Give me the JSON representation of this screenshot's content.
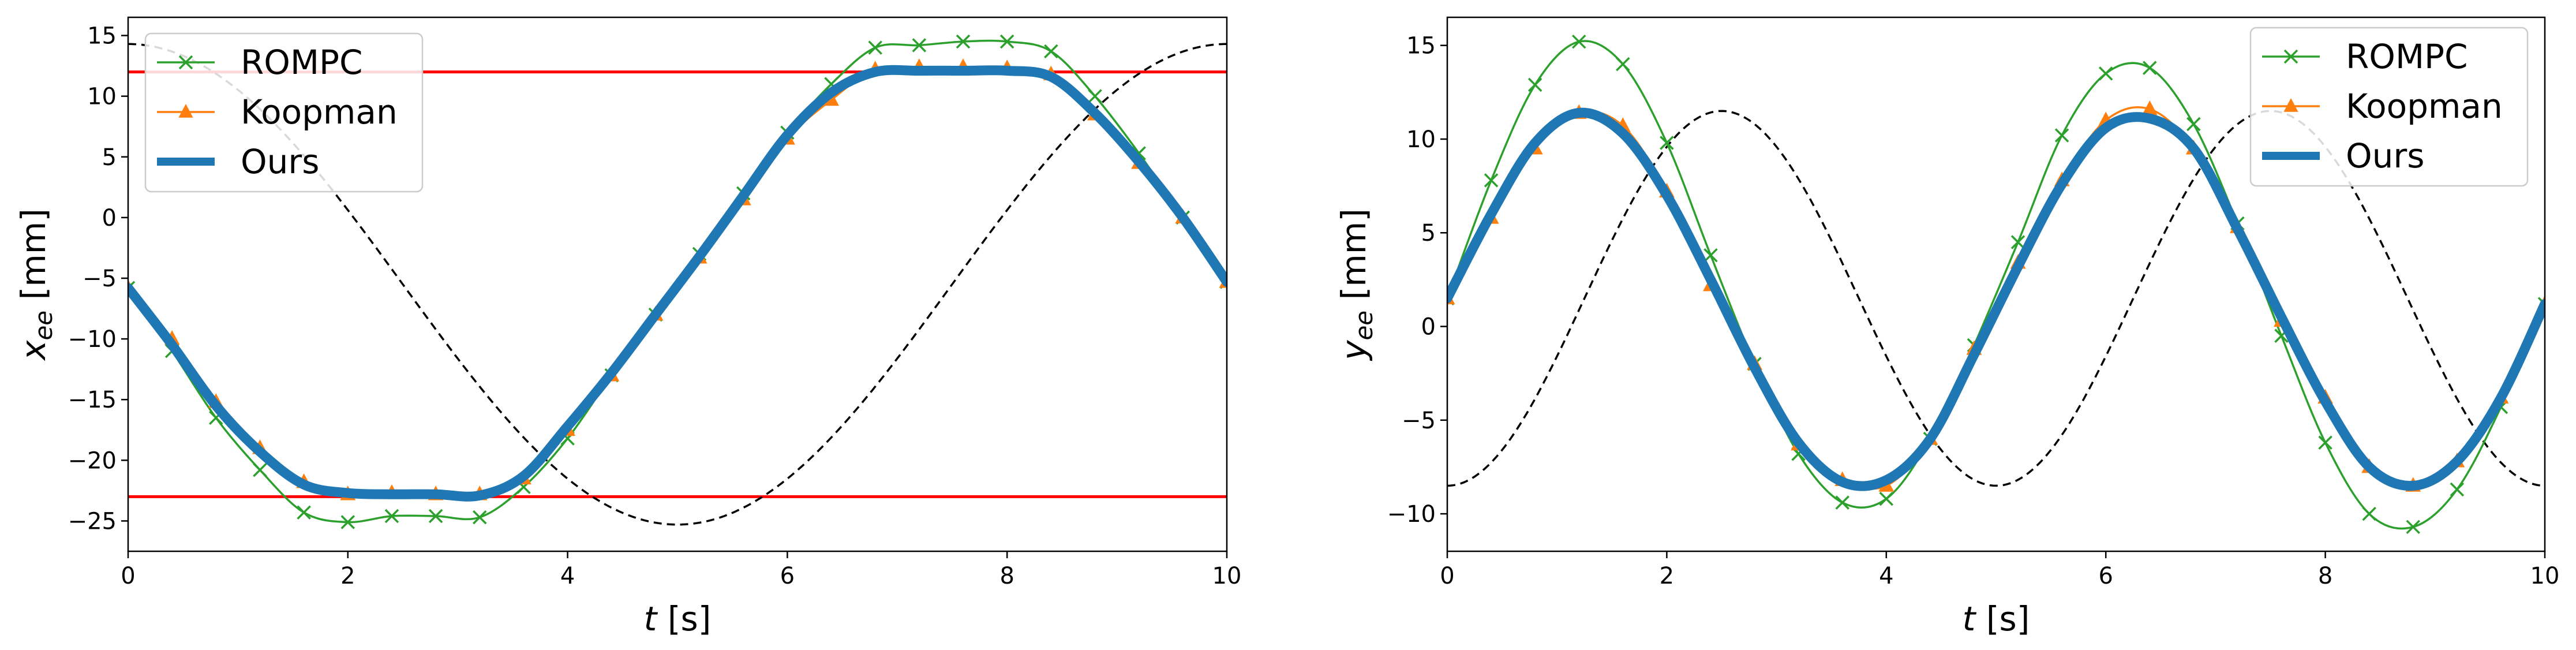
{
  "chart_data": [
    {
      "type": "line",
      "xlabel": "t [s]",
      "ylabel": "x_ee [mm]",
      "xlim": [
        0,
        10
      ],
      "ylim": [
        -27.5,
        16.5
      ],
      "xticks": [
        0,
        2,
        4,
        6,
        8,
        10
      ],
      "yticks": [
        -25,
        -20,
        -15,
        -10,
        -5,
        0,
        5,
        10,
        15
      ],
      "xtick_labels": [
        "0",
        "2",
        "4",
        "6",
        "8",
        "10"
      ],
      "ytick_labels": [
        "−25",
        "−20",
        "−15",
        "−10",
        "−5",
        "0",
        "5",
        "10",
        "15"
      ],
      "grid": false,
      "legend_position": "top-left",
      "constraints": [
        12,
        -23
      ],
      "x": [
        0,
        0.4,
        0.8,
        1.2,
        1.6,
        2.0,
        2.4,
        2.8,
        3.2,
        3.6,
        4.0,
        4.4,
        4.8,
        5.2,
        5.6,
        6.0,
        6.4,
        6.8,
        7.2,
        7.6,
        8.0,
        8.4,
        8.8,
        9.2,
        9.6,
        10.0
      ],
      "reference": {
        "type": "sinusoid",
        "offset": -5.5,
        "amplitude": 19.8,
        "period": 10,
        "phase_time": 2.5,
        "style": "dashed-black"
      },
      "series": [
        {
          "name": "ROMPC",
          "marker": "x",
          "values": [
            -5.8,
            -11,
            -16.5,
            -20.8,
            -24.3,
            -25.1,
            -24.6,
            -24.6,
            -24.7,
            -22.2,
            -18.2,
            -13,
            -8,
            -3,
            2,
            7,
            11,
            14,
            14.2,
            14.5,
            14.5,
            13.7,
            10,
            5.3,
            0,
            -5.3
          ]
        },
        {
          "name": "Koopman",
          "marker": "^",
          "values": [
            -5.8,
            -10,
            -15.2,
            -19,
            -21.8,
            -22.8,
            -22.7,
            -22.8,
            -22.8,
            -21.5,
            -17.5,
            -13,
            -8,
            -3.3,
            1.5,
            6.5,
            9.7,
            12.2,
            12.4,
            12.4,
            12.3,
            11.8,
            8.5,
            4.5,
            0,
            -5.3
          ]
        },
        {
          "name": "Ours",
          "marker": "none",
          "values": [
            -5.8,
            -10.5,
            -15.5,
            -19.3,
            -22,
            -22.7,
            -22.8,
            -22.8,
            -22.9,
            -21.3,
            -17.2,
            -12.8,
            -8,
            -3.2,
            1.8,
            6.8,
            10.3,
            12,
            12.1,
            12.1,
            12.1,
            11.6,
            8.6,
            4.6,
            0,
            -5.3
          ]
        }
      ],
      "legend": [
        "ROMPC",
        "Koopman",
        "Ours"
      ]
    },
    {
      "type": "line",
      "xlabel": "t [s]",
      "ylabel": "y_ee [mm]",
      "xlim": [
        0,
        10
      ],
      "ylim": [
        -12,
        16.5
      ],
      "xticks": [
        0,
        2,
        4,
        6,
        8,
        10
      ],
      "yticks": [
        -10,
        -5,
        0,
        5,
        10,
        15
      ],
      "xtick_labels": [
        "0",
        "2",
        "4",
        "6",
        "8",
        "10"
      ],
      "ytick_labels": [
        "−10",
        "−5",
        "0",
        "5",
        "10",
        "15"
      ],
      "grid": false,
      "legend_position": "top-right",
      "x": [
        0,
        0.4,
        0.8,
        1.2,
        1.6,
        2.0,
        2.4,
        2.8,
        3.2,
        3.6,
        4.0,
        4.4,
        4.8,
        5.2,
        5.6,
        6.0,
        6.4,
        6.8,
        7.2,
        7.6,
        8.0,
        8.4,
        8.8,
        9.2,
        9.6,
        10.0
      ],
      "reference": {
        "type": "sinusoid",
        "offset": 1.5,
        "amplitude": 10,
        "period": 5,
        "phase_time": 1.25,
        "style": "dashed-black"
      },
      "series": [
        {
          "name": "ROMPC",
          "marker": "x",
          "values": [
            1.5,
            7.8,
            12.9,
            15.2,
            14,
            9.8,
            3.8,
            -2,
            -6.8,
            -9.4,
            -9.2,
            -6,
            -1,
            4.5,
            10.2,
            13.5,
            13.8,
            10.8,
            5.5,
            -0.5,
            -6.2,
            -10,
            -10.7,
            -8.7,
            -4.3,
            1.2
          ]
        },
        {
          "name": "Koopman",
          "marker": "^",
          "values": [
            1.5,
            5.8,
            9.5,
            11.4,
            10.7,
            7.2,
            2.2,
            -2,
            -6.3,
            -8.2,
            -8.5,
            -6,
            -1.2,
            3.4,
            7.8,
            11,
            11.6,
            9.5,
            5.3,
            0.3,
            -3.8,
            -7.5,
            -8.5,
            -7.2,
            -3.8,
            1.2
          ]
        },
        {
          "name": "Ours",
          "marker": "none",
          "values": [
            1.5,
            6,
            9.8,
            11.4,
            10.3,
            7,
            2.5,
            -2.2,
            -6.2,
            -8.3,
            -8.2,
            -6,
            -1.5,
            3.2,
            7.6,
            10.6,
            11.1,
            9.5,
            5.2,
            0.5,
            -4,
            -7.5,
            -8.5,
            -7.2,
            -3.8,
            1.2
          ]
        }
      ],
      "legend": [
        "ROMPC",
        "Koopman",
        "Ours"
      ]
    }
  ],
  "colors": {
    "rompc": "#2ca02c",
    "koopman": "#ff7f0e",
    "ours": "#1f77b4",
    "constraint": "#ff0000",
    "reference": "#000000"
  }
}
